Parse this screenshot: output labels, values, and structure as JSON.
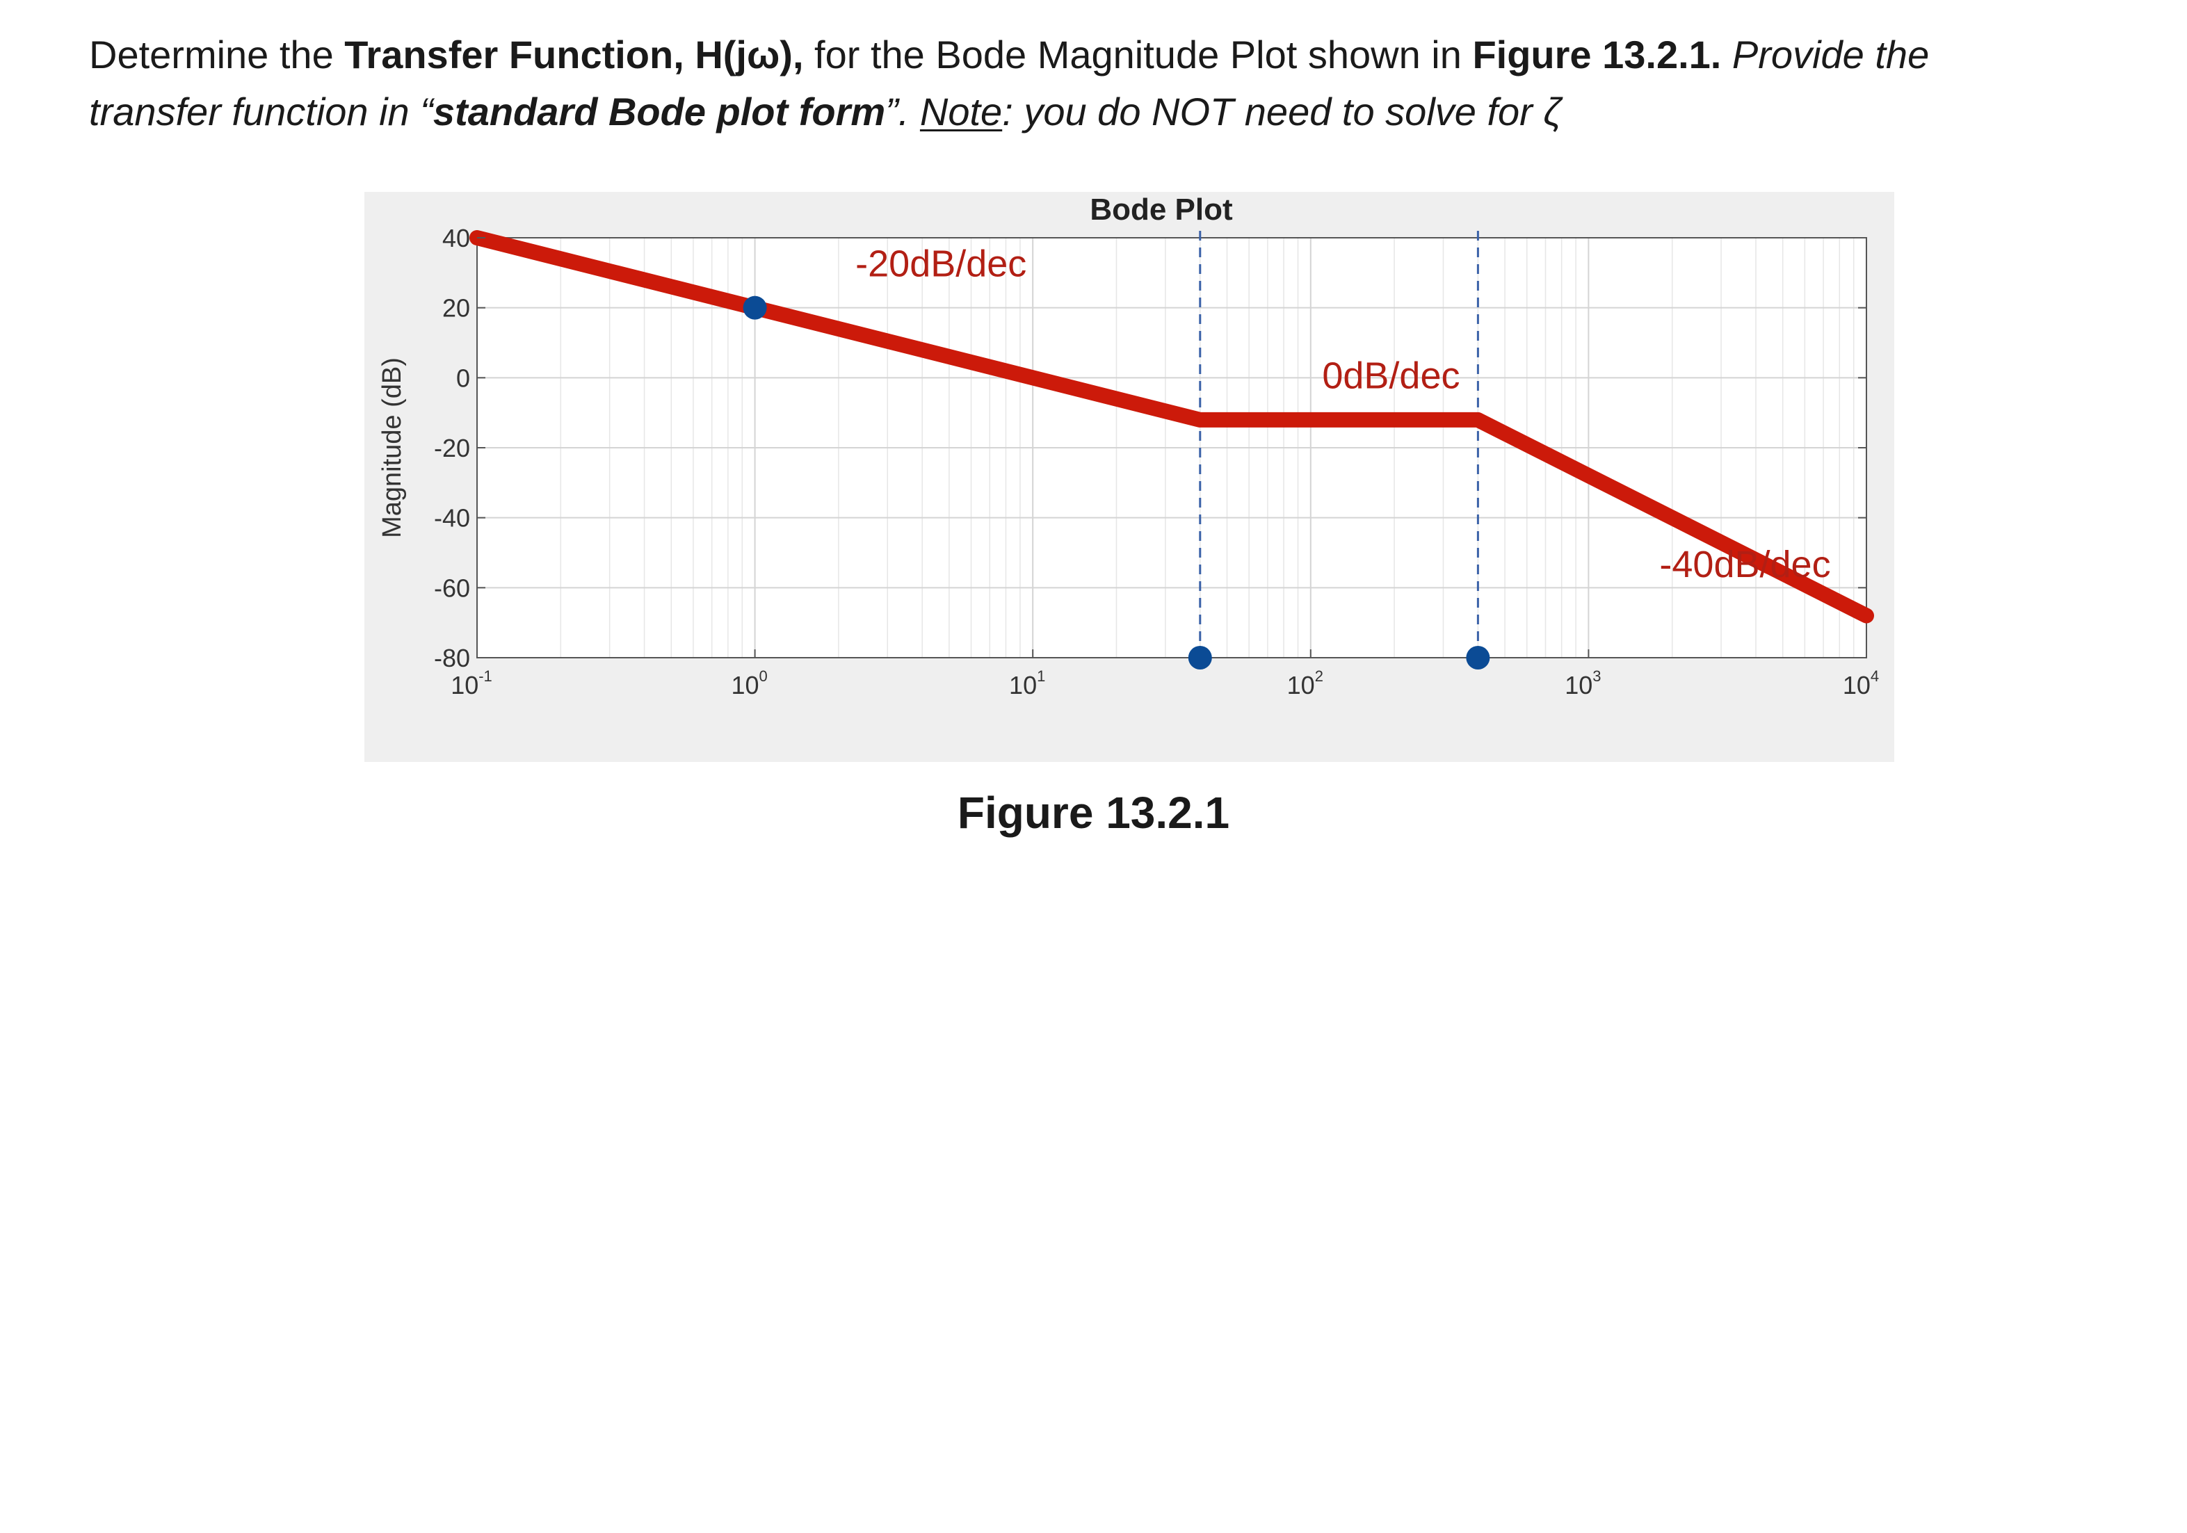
{
  "question": {
    "line1_seg1": "Determine the ",
    "line1_bold1": "Transfer Function, H(jω),",
    "line1_seg2": " for the Bode Magnitude Plot shown in ",
    "line1_bold2": "Figure 13.2.1.",
    "line1_italic": " Provide the",
    "line2_italic1": "transfer function in “",
    "line2_bolditalic": "standard Bode plot form",
    "line2_italic2": "”. ",
    "line2_underline": "Note",
    "line2_italic3": ": you do NOT need to solve for ζ"
  },
  "figure": {
    "caption": "Figure 13.2.1"
  },
  "colors": {
    "curve": "#cc1a0a",
    "marker": "#0b4b95",
    "annotation_text": "#b21f14",
    "figure_bg": "#efefef"
  },
  "chart_data": {
    "type": "line",
    "title": "Bode Plot",
    "xlabel": "",
    "ylabel": "Magnitude (dB)",
    "xscale": "log",
    "xlim": [
      0.1,
      10000
    ],
    "ylim": [
      -80,
      40
    ],
    "grid": true,
    "x_tick_labels": [
      {
        "base": "10",
        "exp": "-1",
        "value": 0.1
      },
      {
        "base": "10",
        "exp": "0",
        "value": 1
      },
      {
        "base": "10",
        "exp": "1",
        "value": 10
      },
      {
        "base": "10",
        "exp": "2",
        "value": 100
      },
      {
        "base": "10",
        "exp": "3",
        "value": 1000
      },
      {
        "base": "10",
        "exp": "4",
        "value": 10000
      }
    ],
    "y_tick_labels": [
      "40",
      "20",
      "0",
      "-20",
      "-40",
      "-60",
      "-80"
    ],
    "y_ticks": [
      40,
      20,
      0,
      -20,
      -40,
      -60,
      -80
    ],
    "series": [
      {
        "x": [
          0.1,
          1,
          40,
          400,
          10000
        ],
        "y": [
          40,
          20,
          -12.04,
          -12.04,
          -68
        ]
      }
    ],
    "markers": [
      {
        "x": 1,
        "y": 20
      },
      {
        "x": 40,
        "y": -80
      },
      {
        "x": 400,
        "y": -80
      }
    ],
    "vlines": [
      40,
      400
    ],
    "annotations": [
      {
        "text": "-20dB/dec",
        "x": 2.3,
        "y": 29
      },
      {
        "text": "0dB/dec",
        "x": 110,
        "y": -3
      },
      {
        "text": "-40dB/dec",
        "x": 1800,
        "y": -57
      }
    ]
  }
}
